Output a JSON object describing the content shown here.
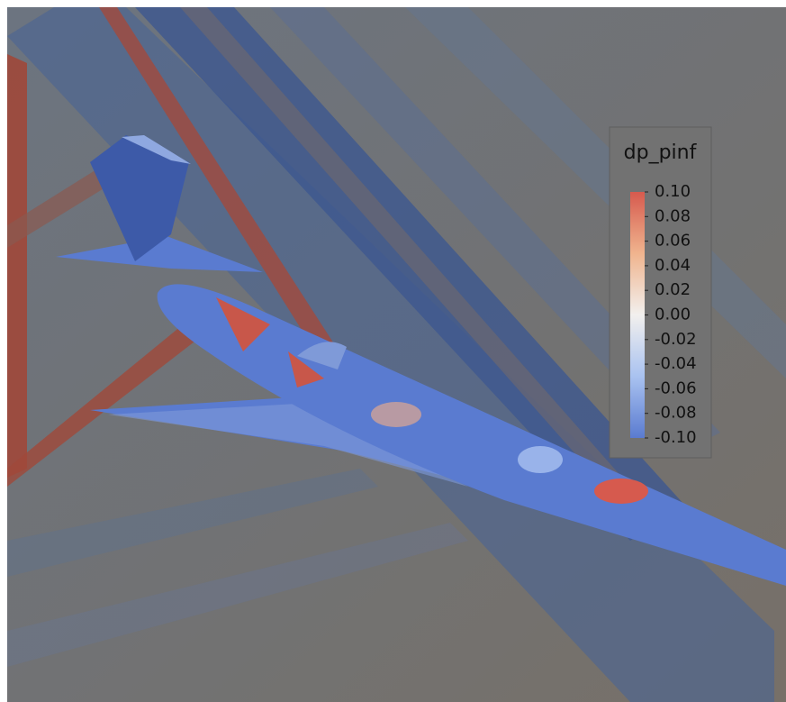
{
  "colorbar": {
    "title": "dp_pinf",
    "range": [
      -0.1,
      0.1
    ],
    "colors": [
      "#5a7bd0",
      "#a9c2f0",
      "#f2f0ee",
      "#f0b48e",
      "#d65a4e"
    ],
    "ticks": [
      {
        "value": 0.1,
        "label": "0.10"
      },
      {
        "value": 0.08,
        "label": "0.08"
      },
      {
        "value": 0.06,
        "label": "0.06"
      },
      {
        "value": 0.04,
        "label": "0.04"
      },
      {
        "value": 0.02,
        "label": "0.02"
      },
      {
        "value": 0,
        "label": "0.00"
      },
      {
        "value": -0.02,
        "label": "-0.02"
      },
      {
        "value": -0.04,
        "label": "-0.04"
      },
      {
        "value": -0.06,
        "label": "-0.06"
      },
      {
        "value": -0.08,
        "label": "-0.08"
      },
      {
        "value": -0.1,
        "label": "-0.10"
      }
    ]
  }
}
